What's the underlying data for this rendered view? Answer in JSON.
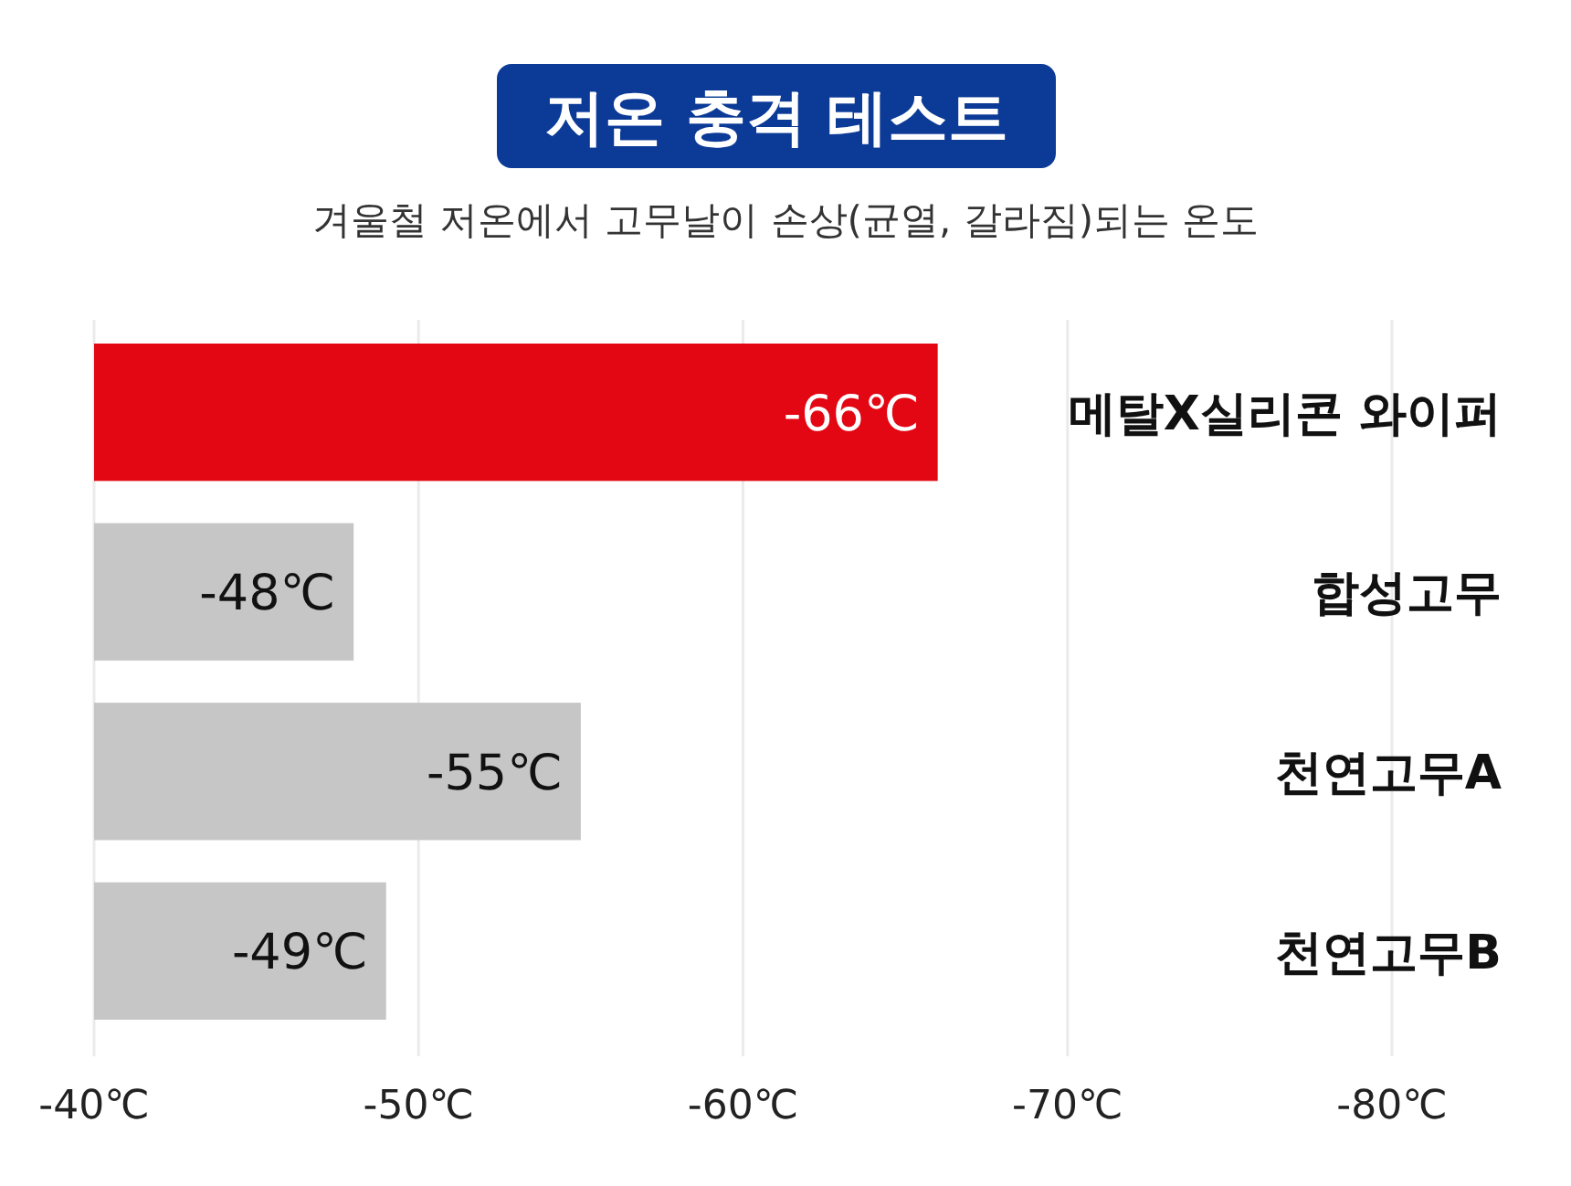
{
  "chart_data": {
    "type": "bar",
    "orientation": "horizontal",
    "title": "저온 충격 테스트",
    "subtitle": "겨울철 저온에서 고무날이 손상(균열, 갈라짐)되는 온도",
    "categories": [
      "메탈X실리콘 와이퍼",
      "합성고무",
      "천연고무A",
      "천연고무B"
    ],
    "values": [
      -66,
      -48,
      -55,
      -49
    ],
    "colors": [
      "#e30613",
      "#c6c6c6",
      "#c6c6c6",
      "#c6c6c6"
    ],
    "value_labels": [
      "-66℃",
      "-48℃",
      "-55℃",
      "-49℃"
    ],
    "xlim": [
      -40,
      -80
    ],
    "xticks": [
      {
        "value": -40,
        "label": "-40℃"
      },
      {
        "value": -50,
        "label": "-50℃"
      },
      {
        "value": -60,
        "label": "-60℃"
      },
      {
        "value": -70,
        "label": "-70℃"
      },
      {
        "value": -80,
        "label": "-80℃"
      }
    ],
    "grid": "x"
  }
}
